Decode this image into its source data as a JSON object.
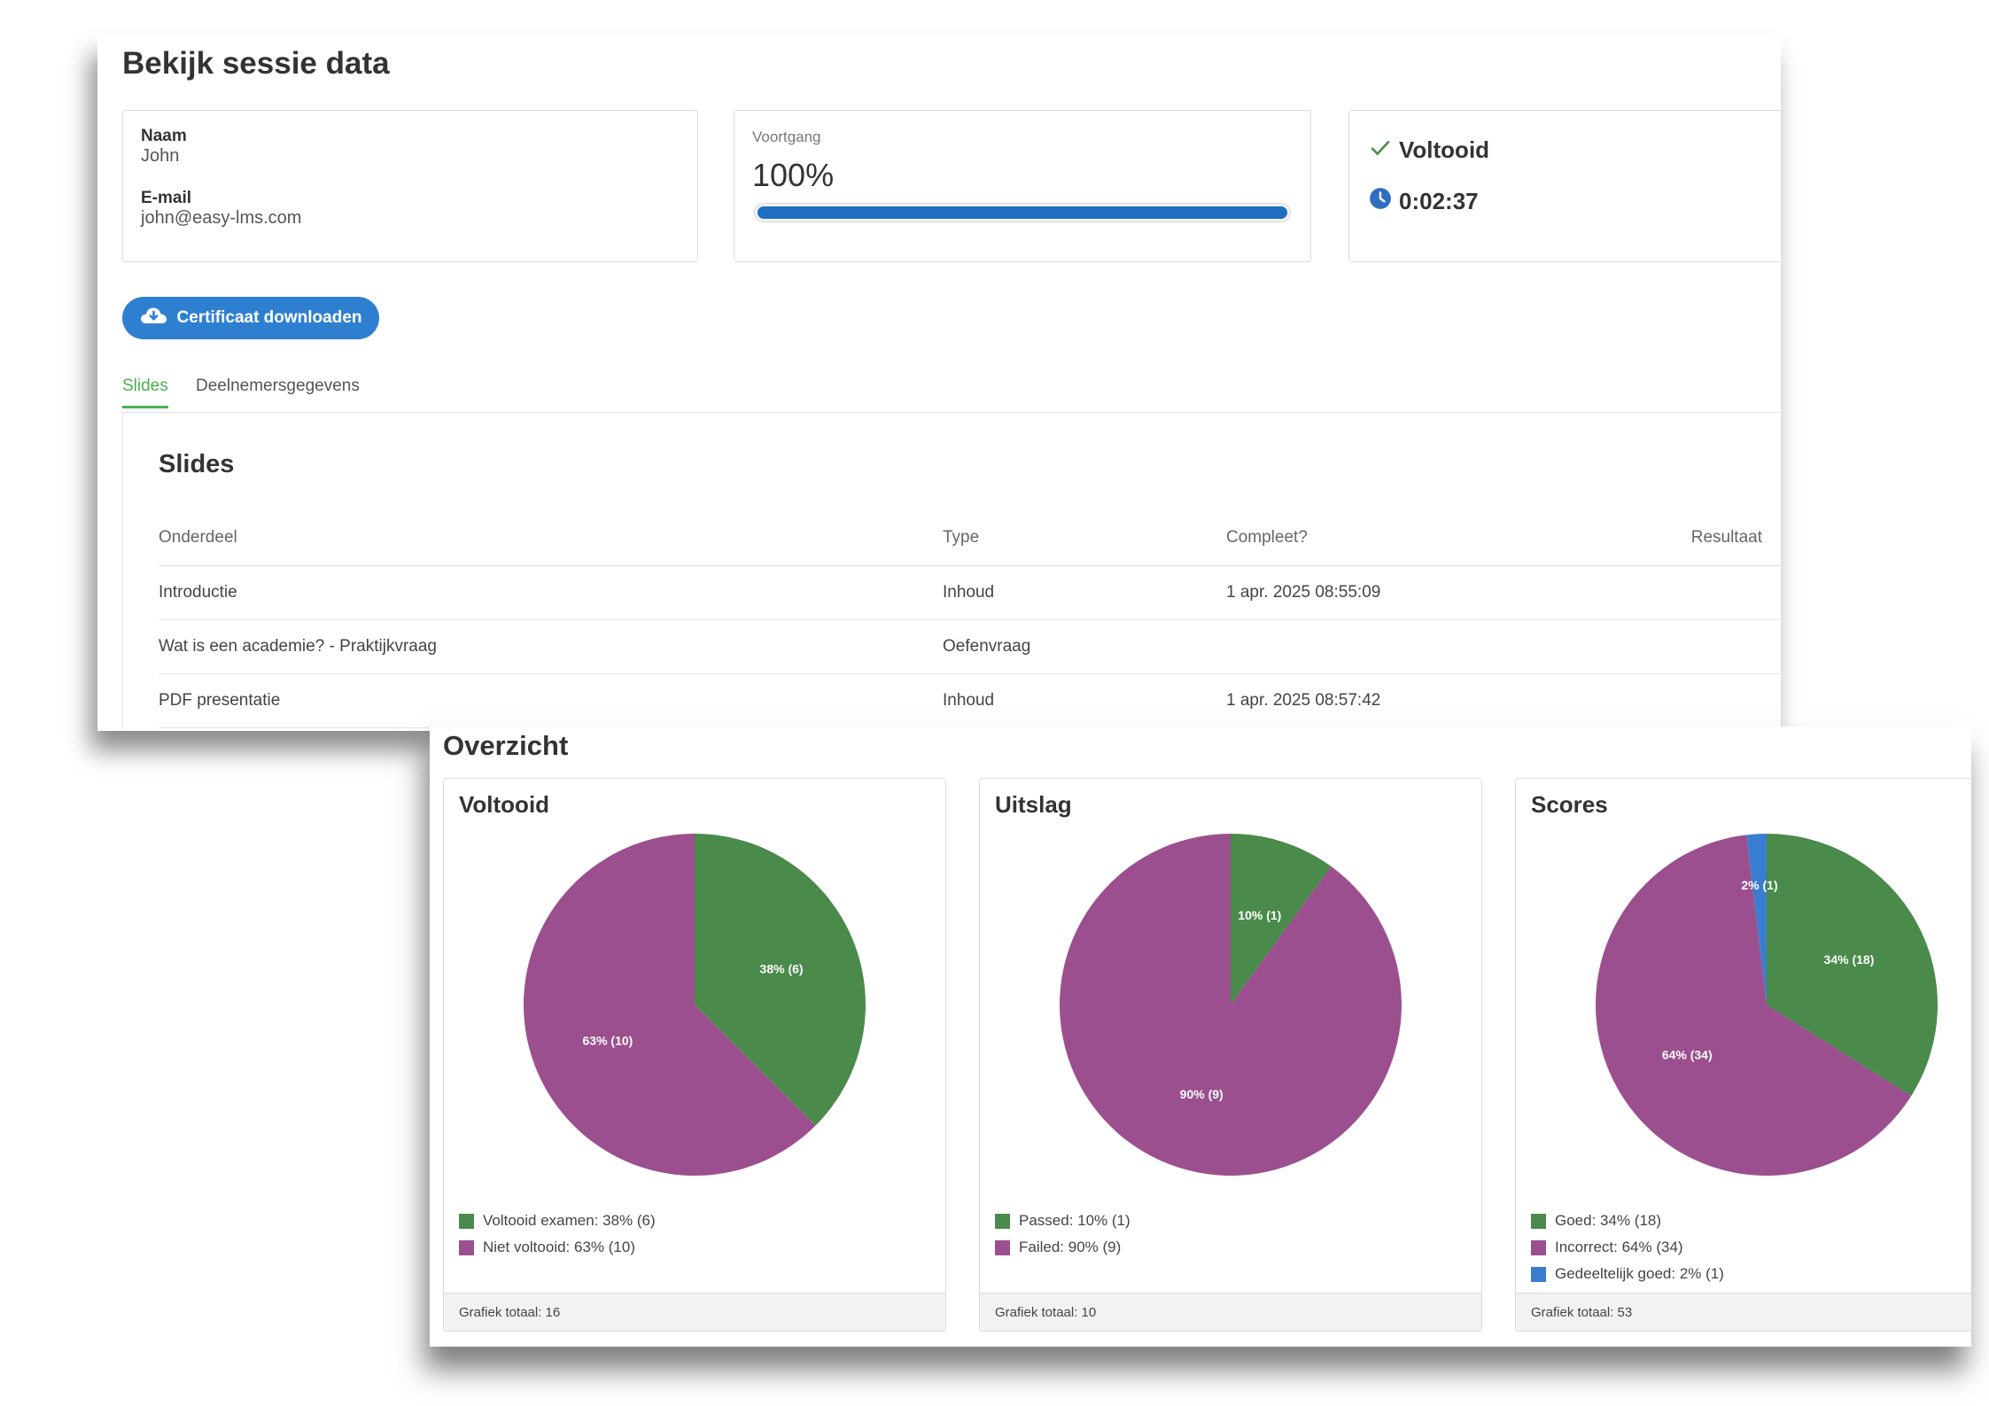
{
  "page": {
    "title": "Bekijk sessie data"
  },
  "user": {
    "name_label": "Naam",
    "name": "John",
    "email_label": "E-mail",
    "email": "john@easy-lms.com"
  },
  "progress": {
    "label": "Voortgang",
    "value_text": "100%",
    "fraction": 1.0,
    "color": "#1e6fc0"
  },
  "status": {
    "completed_label": "Voltooid",
    "duration": "0:02:37",
    "check_icon": "check-icon",
    "clock_icon": "clock-icon"
  },
  "actions": {
    "certificate_label": "Certificaat downloaden",
    "certificate_icon": "cloud-download-icon",
    "color": "#2f7fd1"
  },
  "tabs": [
    {
      "label": "Slides",
      "active": true
    },
    {
      "label": "Deelnemersgegevens",
      "active": false
    }
  ],
  "slides": {
    "title": "Slides",
    "columns": [
      "Onderdeel",
      "Type",
      "Compleet?",
      "Resultaat"
    ],
    "rows": [
      [
        "Introductie",
        "Inhoud",
        "1 apr. 2025 08:55:09",
        ""
      ],
      [
        "Wat is een academie? - Praktijkvraag",
        "Oefenvraag",
        "",
        ""
      ],
      [
        "PDF presentatie",
        "Inhoud",
        "1 apr. 2025 08:57:42",
        ""
      ]
    ]
  },
  "overview": {
    "title": "Overzicht",
    "total_prefix": "Grafiek totaal: "
  },
  "colors": {
    "green": "#4a8a4a",
    "purple": "#9c4f8e",
    "blue": "#3a7dd0",
    "accent": "#4caf50"
  },
  "chart_data": [
    {
      "type": "pie",
      "title": "Voltooid",
      "total": 16,
      "footer": "Grafiek totaal: 16",
      "slices": [
        {
          "name": "Voltooid examen",
          "value": 6,
          "percent": 38,
          "label": "38% (6)",
          "legend": "Voltooid examen: 38% (6)",
          "color": "#4a8a4a"
        },
        {
          "name": "Niet voltooid",
          "value": 10,
          "percent": 63,
          "label": "63% (10)",
          "legend": "Niet voltooid: 63% (10)",
          "color": "#9c4f8e"
        }
      ]
    },
    {
      "type": "pie",
      "title": "Uitslag",
      "total": 10,
      "footer": "Grafiek totaal: 10",
      "slices": [
        {
          "name": "Passed",
          "value": 1,
          "percent": 10,
          "label": "10% (1)",
          "legend": "Passed: 10% (1)",
          "color": "#4a8a4a"
        },
        {
          "name": "Failed",
          "value": 9,
          "percent": 90,
          "label": "90% (9)",
          "legend": "Failed: 90% (9)",
          "color": "#9c4f8e"
        }
      ]
    },
    {
      "type": "pie",
      "title": "Scores",
      "total": 53,
      "footer": "Grafiek totaal: 53",
      "slices": [
        {
          "name": "Goed",
          "value": 18,
          "percent": 34,
          "label": "34% (18)",
          "legend": "Goed: 34% (18)",
          "color": "#4a8a4a"
        },
        {
          "name": "Incorrect",
          "value": 34,
          "percent": 64,
          "label": "64% (34)",
          "legend": "Incorrect: 64% (34)",
          "color": "#9c4f8e"
        },
        {
          "name": "Gedeeltelijk goed",
          "value": 1,
          "percent": 2,
          "label": "2% (1)",
          "legend": "Gedeeltelijk goed: 2% (1)",
          "color": "#3a7dd0"
        }
      ]
    }
  ]
}
